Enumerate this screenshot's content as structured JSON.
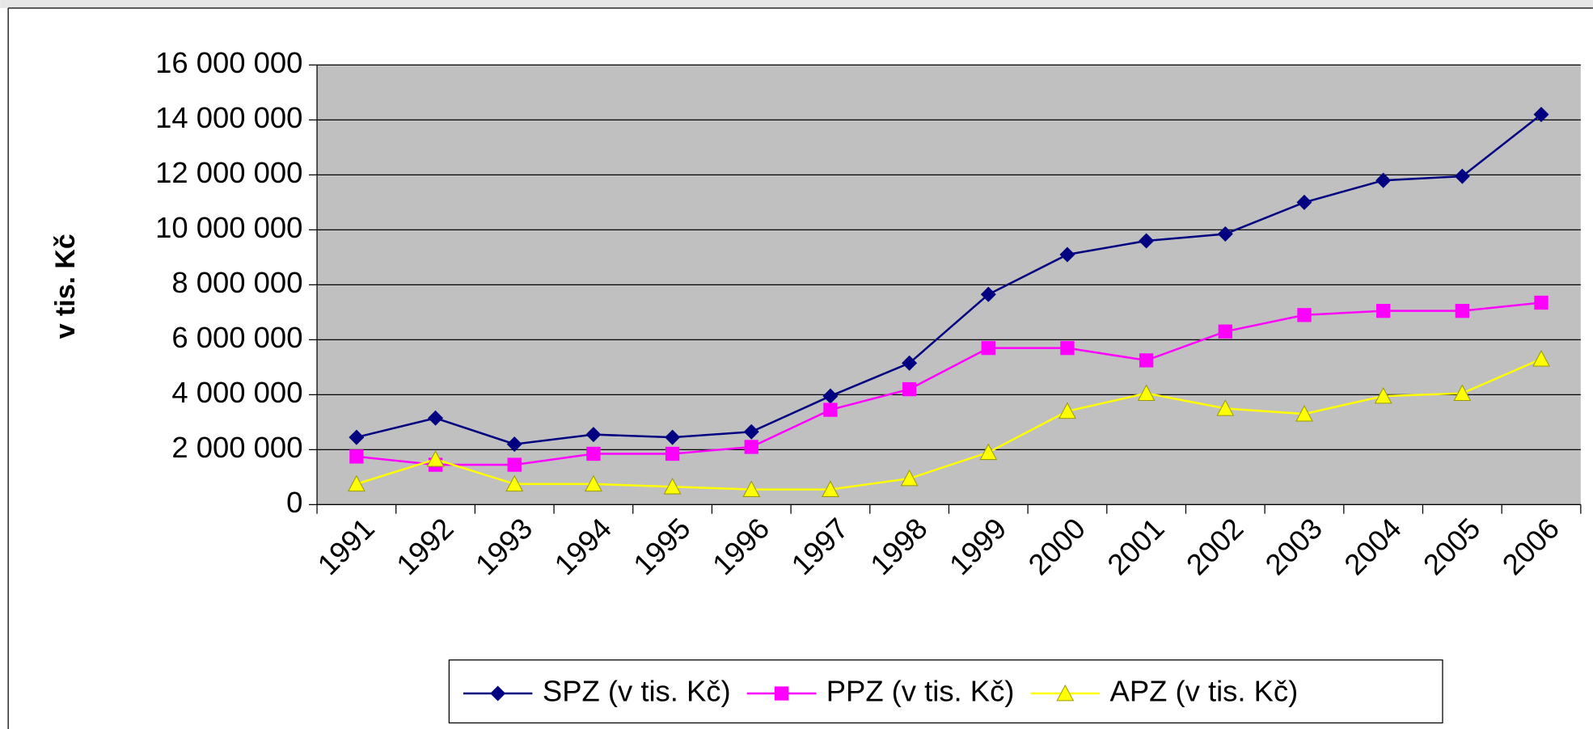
{
  "chart_data": {
    "type": "line",
    "y_axis_label": "v tis. Kč",
    "categories": [
      "1991",
      "1992",
      "1993",
      "1994",
      "1995",
      "1996",
      "1997",
      "1998",
      "1999",
      "2000",
      "2001",
      "2002",
      "2003",
      "2004",
      "2005",
      "2006"
    ],
    "series": [
      {
        "name": "SPZ (v tis. Kč)",
        "color": "#000080",
        "marker": "diamond",
        "values": [
          2450000,
          3150000,
          2200000,
          2550000,
          2450000,
          2650000,
          3950000,
          5150000,
          7650000,
          9100000,
          9600000,
          9850000,
          11000000,
          11800000,
          11950000,
          14200000
        ]
      },
      {
        "name": "PPZ (v tis. Kč)",
        "color": "#ff00ff",
        "marker": "square",
        "values": [
          1750000,
          1450000,
          1450000,
          1850000,
          1850000,
          2100000,
          3450000,
          4200000,
          5700000,
          5700000,
          5250000,
          6300000,
          6900000,
          7050000,
          7050000,
          7350000
        ]
      },
      {
        "name": "APZ (v tis. Kč)",
        "color": "#ffff00",
        "marker": "triangle",
        "values": [
          750000,
          1650000,
          750000,
          750000,
          650000,
          550000,
          550000,
          950000,
          1900000,
          3400000,
          4050000,
          3500000,
          3300000,
          3950000,
          4050000,
          5300000
        ]
      }
    ],
    "ylim": [
      0,
      16000000
    ],
    "yticks": [
      0,
      {
        "value": 2000000,
        "label": "2 000 000"
      },
      {
        "value": 4000000,
        "label": "4 000 000"
      },
      {
        "value": 6000000,
        "label": "6 000 000"
      },
      {
        "value": 8000000,
        "label": "8 000 000"
      },
      {
        "value": 10000000,
        "label": "10 000 000"
      },
      {
        "value": 12000000,
        "label": "12 000 000"
      },
      {
        "value": 14000000,
        "label": "14 000 000"
      },
      {
        "value": 16000000,
        "label": "16 000 000"
      }
    ],
    "grid": true,
    "plot_background": "#c0c0c0",
    "legend": "bottom"
  }
}
